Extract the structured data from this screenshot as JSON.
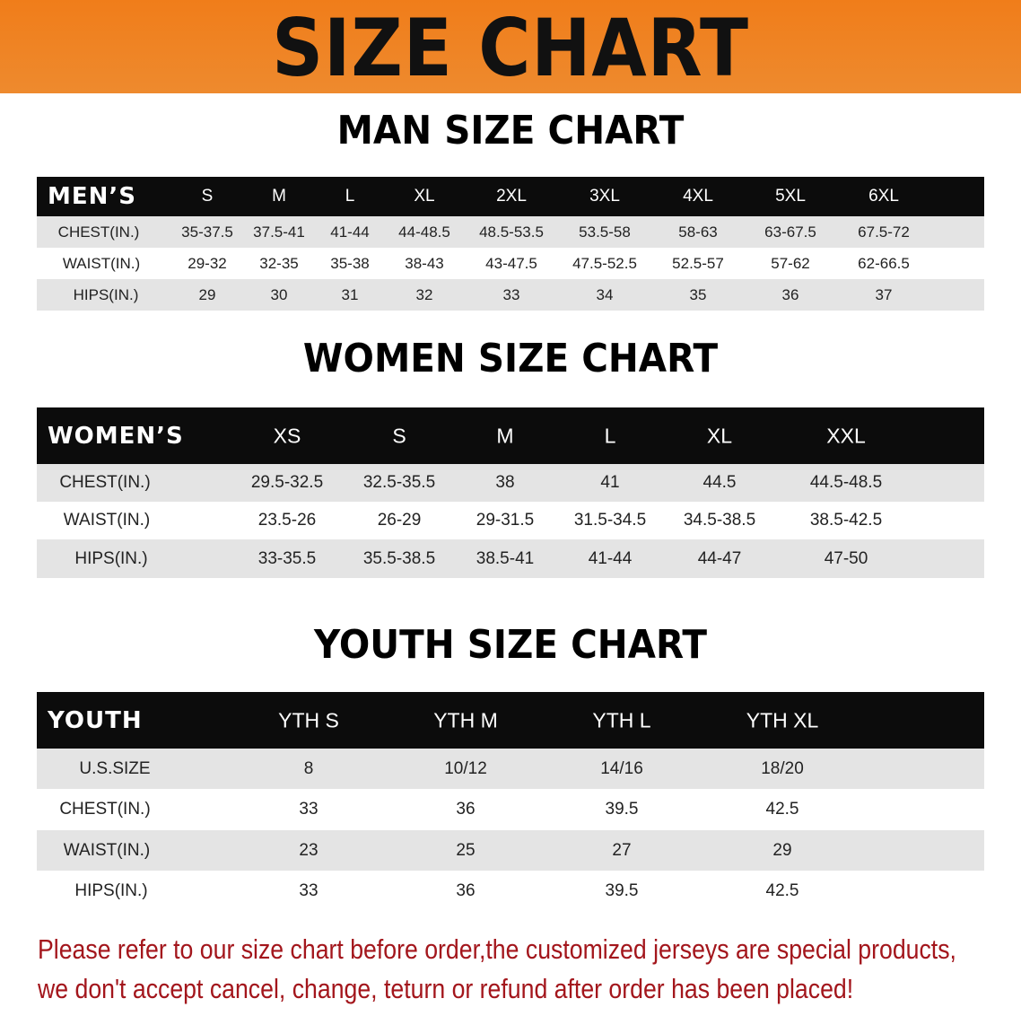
{
  "banner_title": "SIZE CHART",
  "colors": {
    "banner": "#f07d1a",
    "header_row": "#0c0c0c",
    "shaded_row": "#e4e4e4",
    "note": "#a3161c"
  },
  "sections": [
    {
      "title": "MAN SIZE CHART",
      "corner": "MEN’S",
      "headers": [
        "S",
        "M",
        "L",
        "XL",
        "2XL",
        "3XL",
        "4XL",
        "5XL",
        "6XL"
      ],
      "rows": [
        {
          "label": "CHEST(IN.)",
          "values": [
            "35-37.5",
            "37.5-41",
            "41-44",
            "44-48.5",
            "48.5-53.5",
            "53.5-58",
            "58-63",
            "63-67.5",
            "67.5-72"
          ]
        },
        {
          "label": "WAIST(IN.)",
          "values": [
            "29-32",
            "32-35",
            "35-38",
            "38-43",
            "43-47.5",
            "47.5-52.5",
            "52.5-57",
            "57-62",
            "62-66.5"
          ]
        },
        {
          "label": "HIPS(IN.)",
          "values": [
            "29",
            "30",
            "31",
            "32",
            "33",
            "34",
            "35",
            "36",
            "37"
          ]
        }
      ]
    },
    {
      "title": "WOMEN SIZE CHART",
      "corner": "WOMEN’S",
      "headers": [
        "XS",
        "S",
        "M",
        "L",
        "XL",
        "XXL"
      ],
      "rows": [
        {
          "label": "CHEST(IN.)",
          "values": [
            "29.5-32.5",
            "32.5-35.5",
            "38",
            "41",
            "44.5",
            "44.5-48.5"
          ]
        },
        {
          "label": "WAIST(IN.)",
          "values": [
            "23.5-26",
            "26-29",
            "29-31.5",
            "31.5-34.5",
            "34.5-38.5",
            "38.5-42.5"
          ]
        },
        {
          "label": "HIPS(IN.)",
          "values": [
            "33-35.5",
            "35.5-38.5",
            "38.5-41",
            "41-44",
            "44-47",
            "47-50"
          ]
        }
      ]
    },
    {
      "title": "YOUTH SIZE CHART",
      "corner": "YOUTH",
      "headers": [
        "YTH S",
        "YTH M",
        "YTH L",
        "YTH XL"
      ],
      "rows": [
        {
          "label": "U.S.SIZE",
          "values": [
            "8",
            "10/12",
            "14/16",
            "18/20"
          ]
        },
        {
          "label": "CHEST(IN.)",
          "values": [
            "33",
            "36",
            "39.5",
            "42.5"
          ]
        },
        {
          "label": "WAIST(IN.)",
          "values": [
            "23",
            "25",
            "27",
            "29"
          ]
        },
        {
          "label": "HIPS(IN.)",
          "values": [
            "33",
            "36",
            "39.5",
            "42.5"
          ]
        }
      ]
    }
  ],
  "note_lines": [
    "Please refer to our size chart before order,the customized jerseys are special products,",
    "we don't accept cancel, change, teturn or refund after order has been placed!"
  ]
}
